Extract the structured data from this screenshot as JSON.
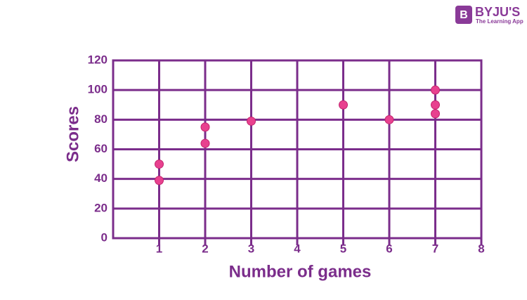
{
  "chart_data": {
    "type": "scatter",
    "x_label": "Number of games",
    "y_label": "Scores",
    "x": [
      1,
      1,
      2,
      2,
      3,
      5,
      6,
      7,
      7,
      7
    ],
    "y": [
      50,
      39,
      75,
      64,
      79,
      90,
      80,
      100,
      90,
      84
    ],
    "color": "#e8418f",
    "axis_color": "#7b2d8b",
    "xlim": [
      0,
      8
    ],
    "xticks": [
      1,
      2,
      3,
      4,
      5,
      6,
      7,
      8
    ],
    "ylim": [
      0,
      120
    ],
    "yticks": [
      0,
      20,
      40,
      60,
      80,
      100,
      120
    ],
    "grid": true
  },
  "logo": {
    "mark": "B",
    "name": "BYJU'S",
    "tagline": "The Learning App"
  }
}
